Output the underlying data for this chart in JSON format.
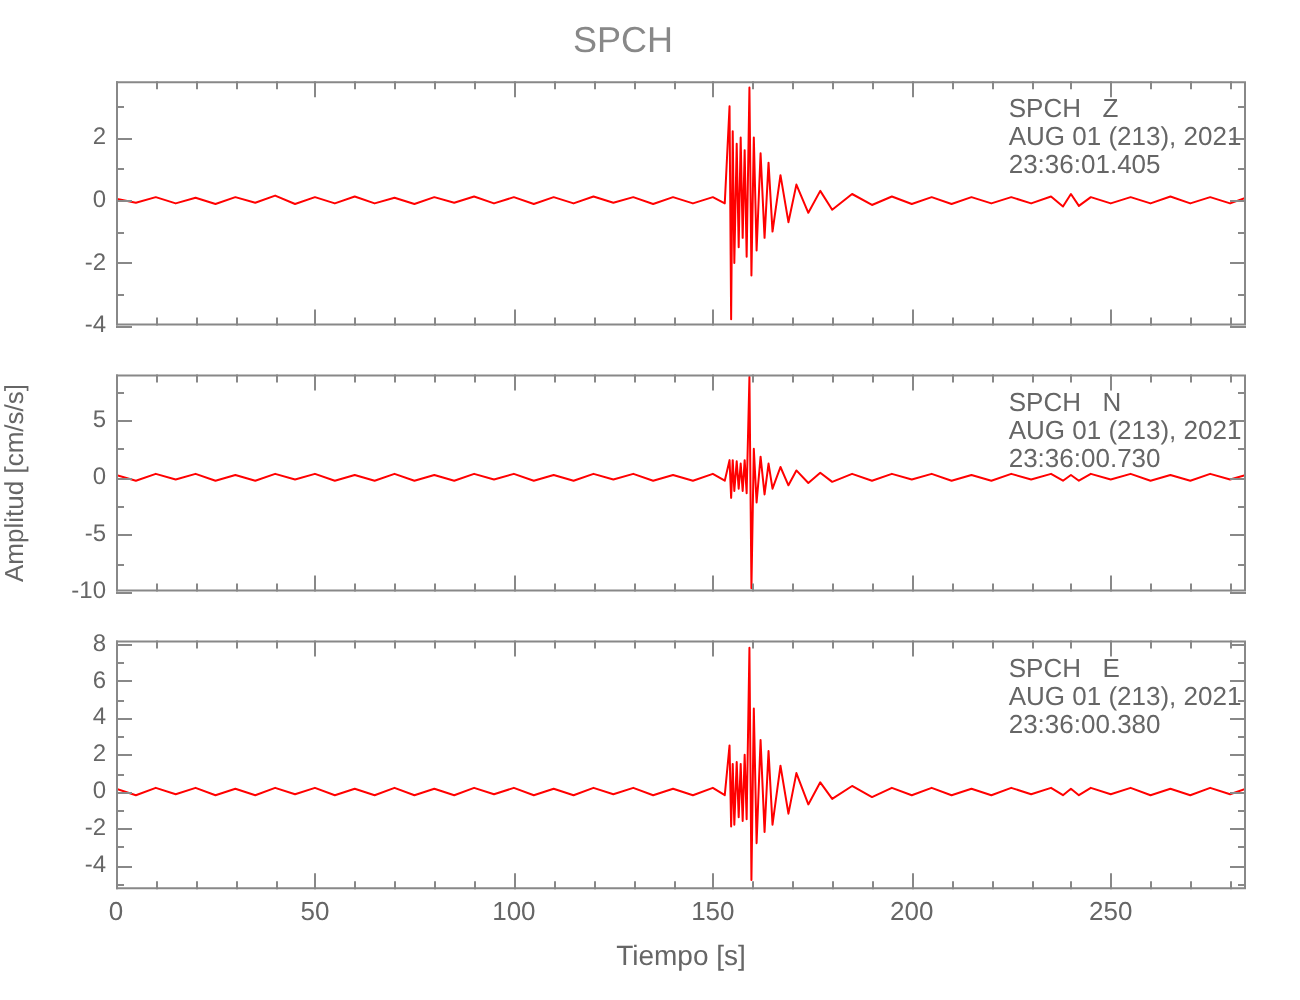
{
  "chart_data": [
    {
      "type": "line",
      "title": "SPCH",
      "color": "#ff0000",
      "xlim": [
        0,
        284
      ],
      "xticks": [
        0,
        50,
        100,
        150,
        200,
        250
      ],
      "ylim": [
        -4,
        3.8
      ],
      "yticks": [
        -4,
        -2,
        0,
        2
      ],
      "tick_labels": "y",
      "annotations": [
        "SPCH   Z",
        "AUG 01 (213), 2021",
        "23:36:01.405"
      ],
      "x": [
        0,
        5,
        10,
        15,
        20,
        25,
        30,
        35,
        40,
        45,
        50,
        55,
        60,
        65,
        70,
        75,
        80,
        85,
        90,
        95,
        100,
        105,
        110,
        115,
        120,
        125,
        130,
        135,
        140,
        145,
        150,
        153,
        154.2,
        154.6,
        155,
        155.4,
        156,
        156.5,
        157,
        157.5,
        158,
        158.5,
        159.2,
        159.7,
        160.3,
        161,
        162,
        163,
        164,
        165,
        167,
        169,
        171,
        174,
        177,
        180,
        185,
        190,
        195,
        200,
        205,
        210,
        215,
        220,
        225,
        230,
        235,
        238,
        240,
        242,
        245,
        250,
        255,
        260,
        265,
        270,
        275,
        280,
        284
      ],
      "values": [
        0.05,
        -0.08,
        0.1,
        -0.1,
        0.08,
        -0.12,
        0.1,
        -0.08,
        0.15,
        -0.12,
        0.1,
        -0.1,
        0.12,
        -0.1,
        0.08,
        -0.12,
        0.1,
        -0.08,
        0.12,
        -0.1,
        0.1,
        -0.12,
        0.1,
        -0.1,
        0.12,
        -0.08,
        0.1,
        -0.12,
        0.1,
        -0.1,
        0.1,
        -0.1,
        3.0,
        -3.8,
        2.2,
        -2.0,
        1.8,
        -1.5,
        2.0,
        -1.2,
        1.6,
        -1.8,
        3.6,
        -2.4,
        2.0,
        -1.6,
        1.5,
        -1.2,
        1.2,
        -1.0,
        0.8,
        -0.7,
        0.5,
        -0.4,
        0.3,
        -0.3,
        0.2,
        -0.15,
        0.12,
        -0.12,
        0.1,
        -0.12,
        0.1,
        -0.1,
        0.1,
        -0.1,
        0.12,
        -0.2,
        0.2,
        -0.18,
        0.1,
        -0.1,
        0.1,
        -0.1,
        0.12,
        -0.1,
        0.1,
        -0.1,
        0.08
      ]
    },
    {
      "type": "line",
      "ylabel": "Amplitud [cm/s/s]",
      "color": "#ff0000",
      "xlim": [
        0,
        284
      ],
      "xticks": [
        0,
        50,
        100,
        150,
        200,
        250
      ],
      "ylim": [
        -10,
        9
      ],
      "yticks": [
        -10,
        -5,
        0,
        5
      ],
      "tick_labels": "y",
      "annotations": [
        "SPCH   N",
        "AUG 01 (213), 2021",
        "23:36:00.730"
      ],
      "x": [
        0,
        5,
        10,
        15,
        20,
        25,
        30,
        35,
        40,
        45,
        50,
        55,
        60,
        65,
        70,
        75,
        80,
        85,
        90,
        95,
        100,
        105,
        110,
        115,
        120,
        125,
        130,
        135,
        140,
        145,
        150,
        153,
        154.2,
        154.6,
        155,
        155.4,
        156,
        156.5,
        157,
        157.5,
        158,
        158.5,
        159.2,
        159.7,
        160.3,
        161,
        162,
        163,
        164,
        165,
        167,
        169,
        171,
        174,
        177,
        180,
        185,
        190,
        195,
        200,
        205,
        210,
        215,
        220,
        225,
        230,
        235,
        238,
        240,
        242,
        245,
        250,
        255,
        260,
        265,
        270,
        275,
        280,
        284
      ],
      "values": [
        0.2,
        -0.3,
        0.3,
        -0.2,
        0.3,
        -0.3,
        0.2,
        -0.3,
        0.3,
        -0.2,
        0.3,
        -0.3,
        0.2,
        -0.3,
        0.3,
        -0.3,
        0.2,
        -0.3,
        0.3,
        -0.2,
        0.3,
        -0.3,
        0.2,
        -0.3,
        0.3,
        -0.2,
        0.3,
        -0.3,
        0.2,
        -0.3,
        0.3,
        -0.3,
        1.5,
        -1.8,
        1.5,
        -1.2,
        1.4,
        -1.0,
        1.2,
        -1.2,
        1.5,
        -1.4,
        8.8,
        -9.7,
        2.5,
        -2.2,
        1.8,
        -1.5,
        1.2,
        -1.0,
        0.9,
        -0.7,
        0.6,
        -0.5,
        0.4,
        -0.4,
        0.3,
        -0.3,
        0.3,
        -0.2,
        0.3,
        -0.3,
        0.2,
        -0.3,
        0.3,
        -0.2,
        0.3,
        -0.3,
        0.2,
        -0.3,
        0.3,
        -0.2,
        0.3,
        -0.3,
        0.2,
        -0.3,
        0.3,
        -0.2,
        0.2
      ]
    },
    {
      "type": "line",
      "xlabel": "Tiempo [s]",
      "color": "#ff0000",
      "xlim": [
        0,
        284
      ],
      "xticks": [
        0,
        50,
        100,
        150,
        200,
        250
      ],
      "ylim": [
        -5.3,
        8.2
      ],
      "yticks": [
        -4,
        -2,
        0,
        2,
        4,
        6,
        8
      ],
      "annotations": [
        "SPCH   E",
        "AUG 01 (213), 2021",
        "23:36:00.380"
      ],
      "x": [
        0,
        5,
        10,
        15,
        20,
        25,
        30,
        35,
        40,
        45,
        50,
        55,
        60,
        65,
        70,
        75,
        80,
        85,
        90,
        95,
        100,
        105,
        110,
        115,
        120,
        125,
        130,
        135,
        140,
        145,
        150,
        153,
        154.2,
        154.6,
        155,
        155.4,
        156,
        156.5,
        157,
        157.5,
        158,
        158.5,
        159.2,
        159.7,
        160.3,
        161,
        162,
        163,
        164,
        165,
        167,
        169,
        171,
        174,
        177,
        180,
        185,
        190,
        195,
        200,
        205,
        210,
        215,
        220,
        225,
        230,
        235,
        238,
        240,
        242,
        245,
        250,
        255,
        260,
        265,
        270,
        275,
        280,
        284
      ],
      "values": [
        0.15,
        -0.2,
        0.2,
        -0.15,
        0.2,
        -0.2,
        0.15,
        -0.2,
        0.2,
        -0.15,
        0.2,
        -0.2,
        0.15,
        -0.2,
        0.2,
        -0.2,
        0.15,
        -0.2,
        0.2,
        -0.15,
        0.2,
        -0.2,
        0.15,
        -0.2,
        0.2,
        -0.15,
        0.2,
        -0.2,
        0.15,
        -0.2,
        0.2,
        -0.2,
        2.5,
        -1.9,
        1.5,
        -1.8,
        1.6,
        -1.4,
        1.5,
        -1.6,
        2.0,
        -1.5,
        7.8,
        -4.8,
        4.5,
        -2.8,
        2.8,
        -2.2,
        2.2,
        -1.8,
        1.4,
        -1.2,
        1.0,
        -0.7,
        0.5,
        -0.4,
        0.3,
        -0.3,
        0.2,
        -0.2,
        0.2,
        -0.2,
        0.15,
        -0.2,
        0.2,
        -0.15,
        0.2,
        -0.2,
        0.15,
        -0.2,
        0.2,
        -0.15,
        0.2,
        -0.2,
        0.15,
        -0.2,
        0.2,
        -0.15,
        0.15
      ]
    }
  ]
}
